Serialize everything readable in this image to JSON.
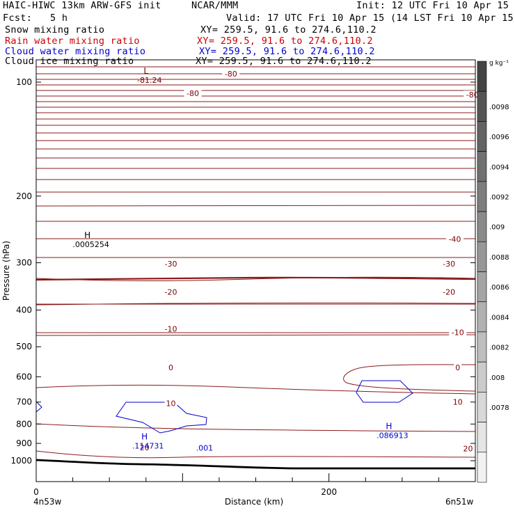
{
  "header": {
    "model": "HAIC-HIWC 13km ARW-GFS init",
    "org": "NCAR/MMM",
    "init": "Init: 12 UTC Fri 10 Apr 15",
    "fcst_label": "Fcst:",
    "fcst_value": "5 h",
    "valid": "Valid: 17 UTC Fri 10 Apr 15 (14 LST Fri 10 Apr 15)"
  },
  "fields": [
    {
      "name": "Snow mixing ratio",
      "xy": "XY= 259.5, 91.6 to 274.6,110.2",
      "color": "#000000"
    },
    {
      "name": "Rain water mixing ratio",
      "xy": "XY= 259.5, 91.6 to 274.6,110.2",
      "color": "#cc0000"
    },
    {
      "name": "Cloud water mixing ratio",
      "xy": "XY= 259.5, 91.6 to 274.6,110.2",
      "color": "#0000cc"
    },
    {
      "name": "Cloud ice mixing ratio",
      "xy": "XY= 259.5, 91.6 to 274.6,110.2",
      "color": "#000000"
    }
  ],
  "chart_data": {
    "type": "cross-section contour",
    "ylabel": "Pressure (hPa)",
    "xlabel": "Distance (km)",
    "y_ticks": [
      "100",
      "200",
      "300",
      "400",
      "500",
      "600",
      "700",
      "800",
      "900",
      "1000"
    ],
    "x_ticks": [
      "0",
      "200"
    ],
    "x_start_label": "4n53w",
    "x_end_label": "6n51w",
    "ylim": [
      1050,
      50
    ],
    "xlim": [
      0,
      300
    ],
    "temperature_contours": [
      {
        "label": "-80",
        "p": 95,
        "x": 133
      },
      {
        "label": "-80",
        "p": 107,
        "x": 107
      },
      {
        "label": "-80",
        "p": 108,
        "x": 298
      },
      {
        "label": "-40",
        "p": 260,
        "x": 286
      },
      {
        "label": "-30",
        "p": 302,
        "x": 92
      },
      {
        "label": "-30",
        "p": 302,
        "x": 282
      },
      {
        "label": "-20",
        "p": 358,
        "x": 92
      },
      {
        "label": "-20",
        "p": 358,
        "x": 282
      },
      {
        "label": "-10",
        "p": 448,
        "x": 92
      },
      {
        "label": "-10",
        "p": 458,
        "x": 288
      },
      {
        "label": "0",
        "p": 567,
        "x": 92
      },
      {
        "label": "0",
        "p": 567,
        "x": 288
      },
      {
        "label": "10",
        "p": 706,
        "x": 92
      },
      {
        "label": "10",
        "p": 700,
        "x": 288
      },
      {
        "label": "20",
        "p": 922,
        "x": 74
      },
      {
        "label": "20",
        "p": 928,
        "x": 295
      }
    ],
    "extrema": [
      {
        "symbol": "L",
        "value": "-81.24",
        "p": 95,
        "x": 75,
        "color": "#7a0000"
      },
      {
        "symbol": "H",
        "value": ".0005254",
        "p": 258,
        "x": 35,
        "color": "#000000"
      },
      {
        "symbol": "H",
        "value": ".114731",
        "p": 878,
        "x": 74,
        "color": "#0000cc"
      },
      {
        "symbol": "H",
        "value": ".086913",
        "p": 825,
        "x": 241,
        "color": "#0000cc"
      }
    ],
    "cloud_water_labels": [
      {
        "label": ".001",
        "p": 925,
        "x": 115
      }
    ],
    "colorbar": {
      "unit": "g kg⁻¹",
      "labels": [
        ".0098",
        ".0096",
        ".0094",
        ".0092",
        ".009",
        ".0088",
        ".0086",
        ".0084",
        ".0082",
        ".008",
        ".0078"
      ],
      "colors": [
        "#444444",
        "#555555",
        "#636363",
        "#707070",
        "#7d7d7d",
        "#8a8a8a",
        "#979797",
        "#a4a4a4",
        "#b1b1b1",
        "#bebebe",
        "#cbcbcb",
        "#d8d8d8",
        "#e5e5e5",
        "#f2f2f2"
      ]
    }
  }
}
